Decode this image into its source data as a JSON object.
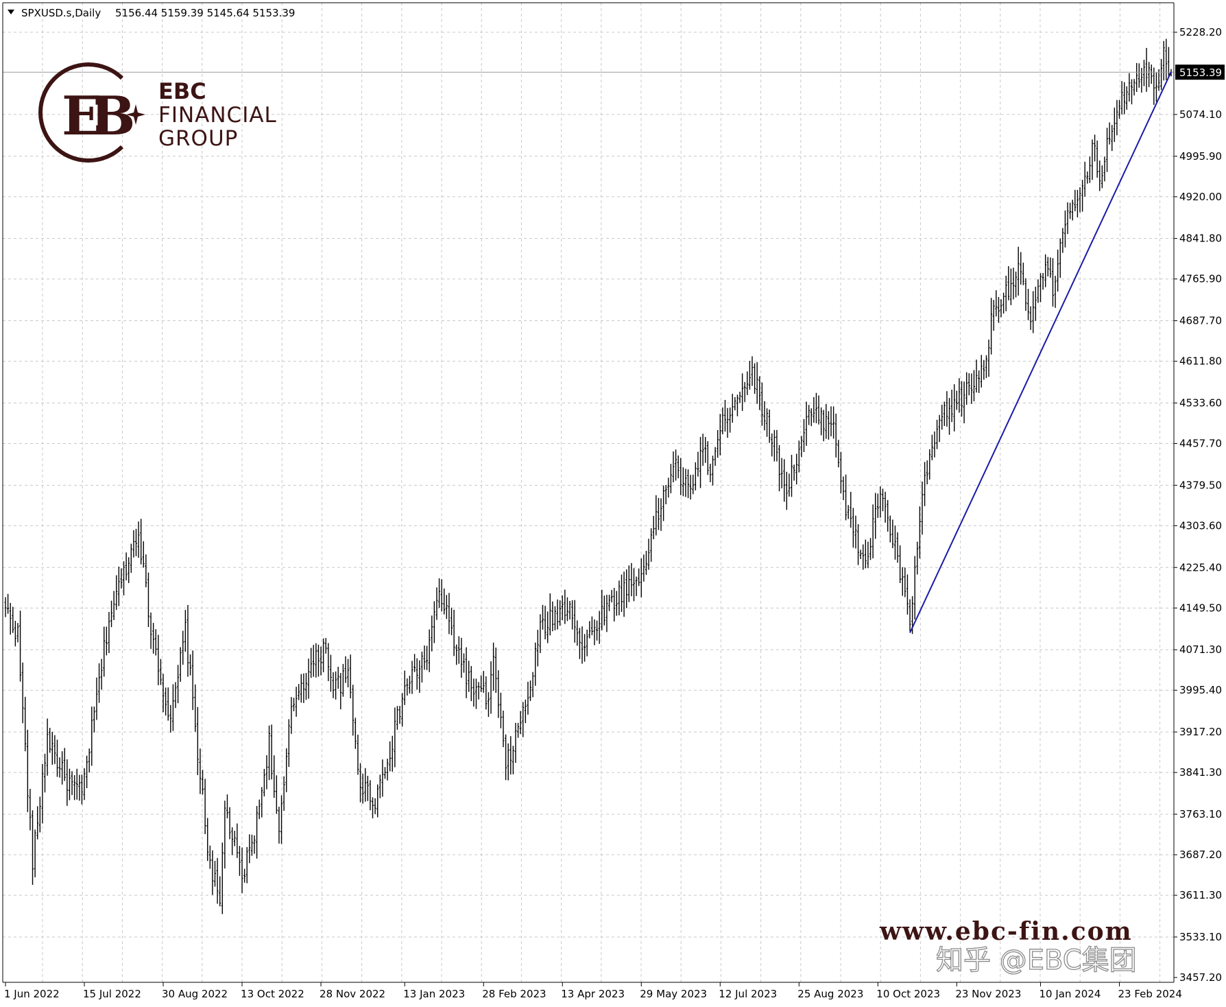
{
  "header": {
    "symbol_label": "SPXUSD.s,Daily",
    "ohlc": "5156.44 5159.39 5145.64 5153.39"
  },
  "logo": {
    "line1": "EBC",
    "line2": "FINANCIAL",
    "line3": "GROUP",
    "monogram": "EB"
  },
  "watermark": {
    "website": "www.ebc-fin.com",
    "zhihu": "知乎 @EBC集团"
  },
  "colors": {
    "bars": "#000000",
    "trendline": "#1a1aa8",
    "grid": "#c8c8c8",
    "brand": "#3d1414",
    "price_tag_bg": "#000000",
    "price_tag_fg": "#ffffff"
  },
  "icons": {
    "dropdown": "triangle-down-icon",
    "logo_star": "sparkle-icon"
  },
  "chart_data": {
    "type": "ohlc_bar",
    "symbol": "SPXUSD.s",
    "timeframe": "Daily",
    "current_price": 5153.39,
    "current_price_label": "5153.39",
    "ylim": [
      3457.2,
      5275
    ],
    "yticks": [
      "5228.20",
      "5074.10",
      "4995.90",
      "4920.00",
      "4841.80",
      "4765.90",
      "4687.70",
      "4611.80",
      "4533.60",
      "4457.70",
      "4379.50",
      "4303.60",
      "4225.40",
      "4149.50",
      "4071.30",
      "3995.40",
      "3917.20",
      "3841.30",
      "3763.10",
      "3687.20",
      "3611.30",
      "3533.10",
      "3457.20"
    ],
    "xticks": [
      "1 Jun 2022",
      "15 Jul 2022",
      "30 Aug 2022",
      "13 Oct 2022",
      "28 Nov 2022",
      "13 Jan 2023",
      "28 Feb 2023",
      "13 Apr 2023",
      "29 May 2023",
      "12 Jul 2023",
      "25 Aug 2023",
      "10 Oct 2023",
      "23 Nov 2023",
      "10 Jan 2024",
      "23 Feb 2024"
    ],
    "grid": true,
    "close_anchors": [
      {
        "date": "2022-06-01",
        "close": 4150
      },
      {
        "date": "2022-06-08",
        "close": 4100
      },
      {
        "date": "2022-06-16",
        "close": 3670
      },
      {
        "date": "2022-06-24",
        "close": 3910
      },
      {
        "date": "2022-07-05",
        "close": 3830
      },
      {
        "date": "2022-07-14",
        "close": 3800
      },
      {
        "date": "2022-07-29",
        "close": 4130
      },
      {
        "date": "2022-08-16",
        "close": 4300
      },
      {
        "date": "2022-08-22",
        "close": 4140
      },
      {
        "date": "2022-09-02",
        "close": 3930
      },
      {
        "date": "2022-09-12",
        "close": 4110
      },
      {
        "date": "2022-09-23",
        "close": 3700
      },
      {
        "date": "2022-09-30",
        "close": 3590
      },
      {
        "date": "2022-10-04",
        "close": 3780
      },
      {
        "date": "2022-10-13",
        "close": 3640
      },
      {
        "date": "2022-10-21",
        "close": 3750
      },
      {
        "date": "2022-10-28",
        "close": 3900
      },
      {
        "date": "2022-11-03",
        "close": 3720
      },
      {
        "date": "2022-11-10",
        "close": 3960
      },
      {
        "date": "2022-11-15",
        "close": 4000
      },
      {
        "date": "2022-11-30",
        "close": 4080
      },
      {
        "date": "2022-12-05",
        "close": 4000
      },
      {
        "date": "2022-12-13",
        "close": 4020
      },
      {
        "date": "2022-12-20",
        "close": 3820
      },
      {
        "date": "2022-12-28",
        "close": 3790
      },
      {
        "date": "2023-01-06",
        "close": 3900
      },
      {
        "date": "2023-01-13",
        "close": 4000
      },
      {
        "date": "2023-01-26",
        "close": 4060
      },
      {
        "date": "2023-02-02",
        "close": 4180
      },
      {
        "date": "2023-02-10",
        "close": 4090
      },
      {
        "date": "2023-02-21",
        "close": 4000
      },
      {
        "date": "2023-03-02",
        "close": 3980
      },
      {
        "date": "2023-03-06",
        "close": 4050
      },
      {
        "date": "2023-03-13",
        "close": 3850
      },
      {
        "date": "2023-03-24",
        "close": 3980
      },
      {
        "date": "2023-03-31",
        "close": 4110
      },
      {
        "date": "2023-04-18",
        "close": 4160
      },
      {
        "date": "2023-04-25",
        "close": 4070
      },
      {
        "date": "2023-05-05",
        "close": 4140
      },
      {
        "date": "2023-05-19",
        "close": 4190
      },
      {
        "date": "2023-05-26",
        "close": 4200
      },
      {
        "date": "2023-06-02",
        "close": 4280
      },
      {
        "date": "2023-06-15",
        "close": 4420
      },
      {
        "date": "2023-06-26",
        "close": 4360
      },
      {
        "date": "2023-06-30",
        "close": 4450
      },
      {
        "date": "2023-07-06",
        "close": 4410
      },
      {
        "date": "2023-07-14",
        "close": 4510
      },
      {
        "date": "2023-07-27",
        "close": 4580
      },
      {
        "date": "2023-07-31",
        "close": 4590
      },
      {
        "date": "2023-08-08",
        "close": 4500
      },
      {
        "date": "2023-08-18",
        "close": 4370
      },
      {
        "date": "2023-08-31",
        "close": 4510
      },
      {
        "date": "2023-09-14",
        "close": 4500
      },
      {
        "date": "2023-09-21",
        "close": 4330
      },
      {
        "date": "2023-10-03",
        "close": 4230
      },
      {
        "date": "2023-10-11",
        "close": 4370
      },
      {
        "date": "2023-10-20",
        "close": 4240
      },
      {
        "date": "2023-10-27",
        "close": 4120
      },
      {
        "date": "2023-11-03",
        "close": 4360
      },
      {
        "date": "2023-11-14",
        "close": 4500
      },
      {
        "date": "2023-11-30",
        "close": 4560
      },
      {
        "date": "2023-12-08",
        "close": 4600
      },
      {
        "date": "2023-12-14",
        "close": 4710
      },
      {
        "date": "2023-12-28",
        "close": 4780
      },
      {
        "date": "2024-01-04",
        "close": 4690
      },
      {
        "date": "2024-01-12",
        "close": 4790
      },
      {
        "date": "2024-01-17",
        "close": 4740
      },
      {
        "date": "2024-01-23",
        "close": 4870
      },
      {
        "date": "2024-02-01",
        "close": 4910
      },
      {
        "date": "2024-02-09",
        "close": 5020
      },
      {
        "date": "2024-02-13",
        "close": 4950
      },
      {
        "date": "2024-02-22",
        "close": 5090
      },
      {
        "date": "2024-03-01",
        "close": 5140
      },
      {
        "date": "2024-03-08",
        "close": 5160
      },
      {
        "date": "2024-03-15",
        "close": 5130
      },
      {
        "date": "2024-03-20",
        "close": 5195
      },
      {
        "date": "2024-03-25",
        "close": 5153.39
      }
    ],
    "trendline": {
      "from": {
        "date": "2023-10-27",
        "value": 4103
      },
      "to": {
        "date": "2024-03-25",
        "value": 5154
      }
    }
  }
}
